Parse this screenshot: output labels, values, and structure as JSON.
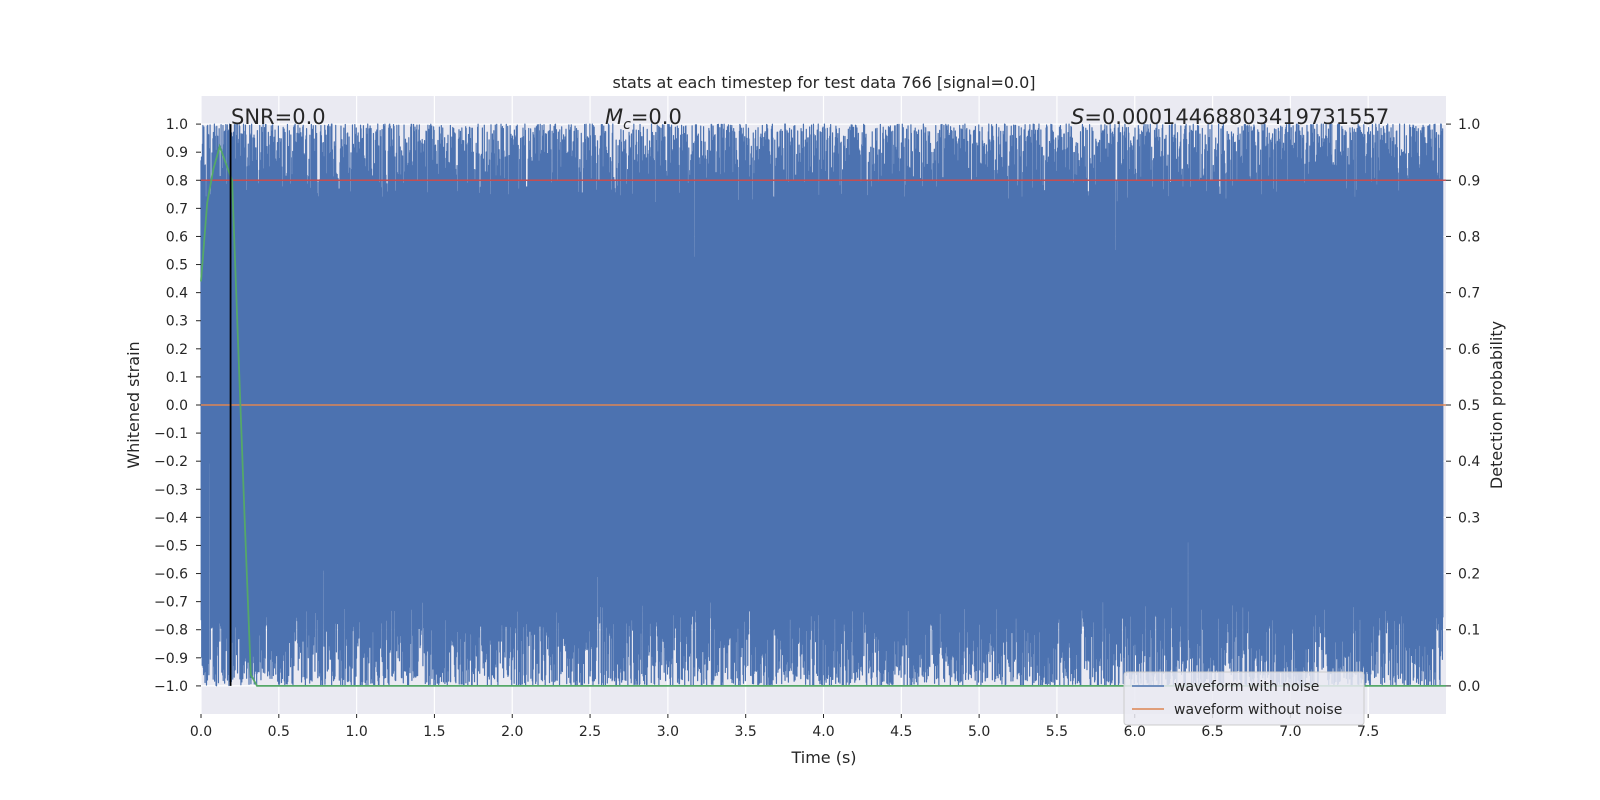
{
  "chart_data": {
    "type": "line",
    "title": "stats at each timestep for test data 766 [signal=0.0]",
    "xlabel": "Time (s)",
    "ylabel": "Whitened strain",
    "y2label": "Detection probability",
    "xlim": [
      0.0,
      8.0
    ],
    "ylim": [
      -1.1,
      1.1
    ],
    "y2lim": [
      -0.05,
      1.05
    ],
    "xticks": [
      "0.0",
      "0.5",
      "1.0",
      "1.5",
      "2.0",
      "2.5",
      "3.0",
      "3.5",
      "4.0",
      "4.5",
      "5.0",
      "5.5",
      "6.0",
      "6.5",
      "7.0",
      "7.5"
    ],
    "yticks": [
      "1.0",
      "0.9",
      "0.8",
      "0.7",
      "0.6",
      "0.5",
      "0.4",
      "0.3",
      "0.2",
      "0.1",
      "0.0",
      "−0.1",
      "−0.2",
      "−0.3",
      "−0.4",
      "−0.5",
      "−0.6",
      "−0.7",
      "−0.8",
      "−0.9",
      "−1.0"
    ],
    "y2ticks": [
      "1.0",
      "0.9",
      "0.8",
      "0.7",
      "0.6",
      "0.5",
      "0.4",
      "0.3",
      "0.2",
      "0.1",
      "0.0"
    ],
    "grid": true,
    "legend_position": "bottom-right",
    "annotations": {
      "snr_label": "SNR=0.0",
      "mc_symbol": "M",
      "mc_subscript": "c",
      "mc_value": "=0.0",
      "s_symbol": "S",
      "s_value": "=0.00014468803419731557"
    },
    "series": [
      {
        "name": "waveform with noise",
        "color": "#4c72b0",
        "style": "dense noise",
        "ymin": -1.0,
        "ymax": 1.0
      },
      {
        "name": "waveform without noise",
        "color": "#dd8452",
        "x": [
          0.0,
          8.0
        ],
        "y": [
          0.0,
          0.0
        ]
      },
      {
        "color": "#55a868",
        "axis": "right",
        "x": [
          0.0,
          0.04,
          0.08,
          0.12,
          0.16,
          0.2,
          0.24,
          0.28,
          0.32,
          0.36,
          0.4,
          1.0,
          2.0,
          4.0,
          6.0,
          8.0
        ],
        "y": [
          0.72,
          0.86,
          0.92,
          0.96,
          0.93,
          0.9,
          0.6,
          0.3,
          0.02,
          0.0,
          0.0,
          0.0,
          0.0,
          0.0,
          0.0,
          0.0
        ]
      }
    ],
    "hlines": [
      {
        "color": "#c44e52",
        "axis": "right",
        "y": 0.9
      }
    ],
    "vlines": [
      {
        "color": "#000000",
        "x": 0.19,
        "ymin": -1.0,
        "ymax": 1.0
      }
    ]
  }
}
